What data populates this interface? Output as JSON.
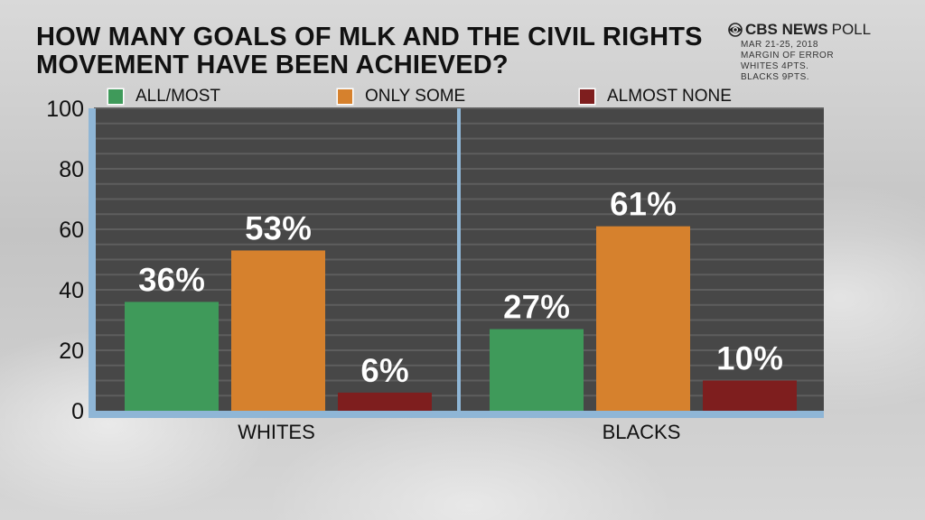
{
  "header": {
    "title_line1": "HOW MANY GOALS OF MLK AND THE CIVIL RIGHTS",
    "title_line2": "MOVEMENT HAVE BEEN ACHIEVED?",
    "brand_name": "CBS NEWS",
    "brand_suffix": "POLL",
    "brand_icon": "cbs-eye-icon",
    "meta": [
      "MAR 21-25, 2018",
      "MARGIN OF ERROR",
      "WHITES  4PTS.",
      "BLACKS 9PTS."
    ]
  },
  "legend": [
    {
      "label": "ALL/MOST",
      "color": "#3f9a5a"
    },
    {
      "label": "ONLY SOME",
      "color": "#d6812d"
    },
    {
      "label": "ALMOST NONE",
      "color": "#7e1e1e"
    }
  ],
  "chart_data": {
    "type": "bar",
    "categories": [
      "WHITES",
      "BLACKS"
    ],
    "series": [
      {
        "name": "ALL/MOST",
        "values": [
          36,
          27
        ],
        "labels": [
          "36%",
          "27%"
        ],
        "color": "#3f9a5a"
      },
      {
        "name": "ONLY SOME",
        "values": [
          53,
          61
        ],
        "labels": [
          "53%",
          "61%"
        ],
        "color": "#d6812d"
      },
      {
        "name": "ALMOST NONE",
        "values": [
          6,
          10
        ],
        "labels": [
          "6%",
          "10%"
        ],
        "color": "#7e1e1e"
      }
    ],
    "title": "HOW MANY GOALS OF MLK AND THE CIVIL RIGHTS MOVEMENT HAVE BEEN ACHIEVED?",
    "xlabel": "",
    "ylabel": "",
    "ylim": [
      0,
      100
    ],
    "yticks": [
      0,
      20,
      40,
      60,
      80,
      100
    ],
    "grid": true,
    "legend_position": "top",
    "plot_background": "#474747",
    "axis_color": "#8fb6d6"
  }
}
